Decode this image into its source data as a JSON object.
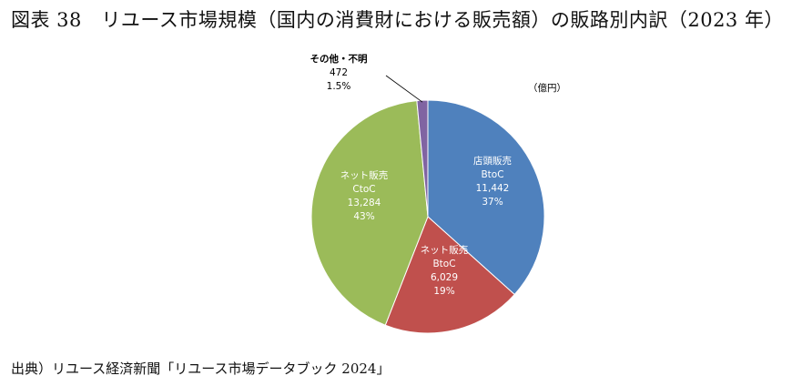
{
  "title": "図表 38　リユース市場規模（国内の消費財における販売額）の販路別内訳（2023 年）",
  "source": "出典）リユース経済新聞「リユース市場データブック 2024」",
  "chart_data": {
    "type": "pie",
    "unit_label": "（億円）",
    "start": "top, clockwise",
    "slices": [
      {
        "label": "店頭販売",
        "sublabel": "BtoC",
        "value": 11442,
        "value_text": "11,442",
        "percent": "37%",
        "color": "#4f81bd",
        "text_color": "#ffffff"
      },
      {
        "label": "ネット販売",
        "sublabel": "BtoC",
        "value": 6029,
        "value_text": "6,029",
        "percent": "19%",
        "color": "#c0504d",
        "text_color": "#ffffff"
      },
      {
        "label": "ネット販売",
        "sublabel": "CtoC",
        "value": 13284,
        "value_text": "13,284",
        "percent": "43%",
        "color": "#9bbb59",
        "text_color": "#ffffff"
      },
      {
        "label": "その他・不明",
        "sublabel": "",
        "value": 472,
        "value_text": "472",
        "percent": "1.5%",
        "color": "#8064a2",
        "text_color": "#000000"
      }
    ]
  }
}
